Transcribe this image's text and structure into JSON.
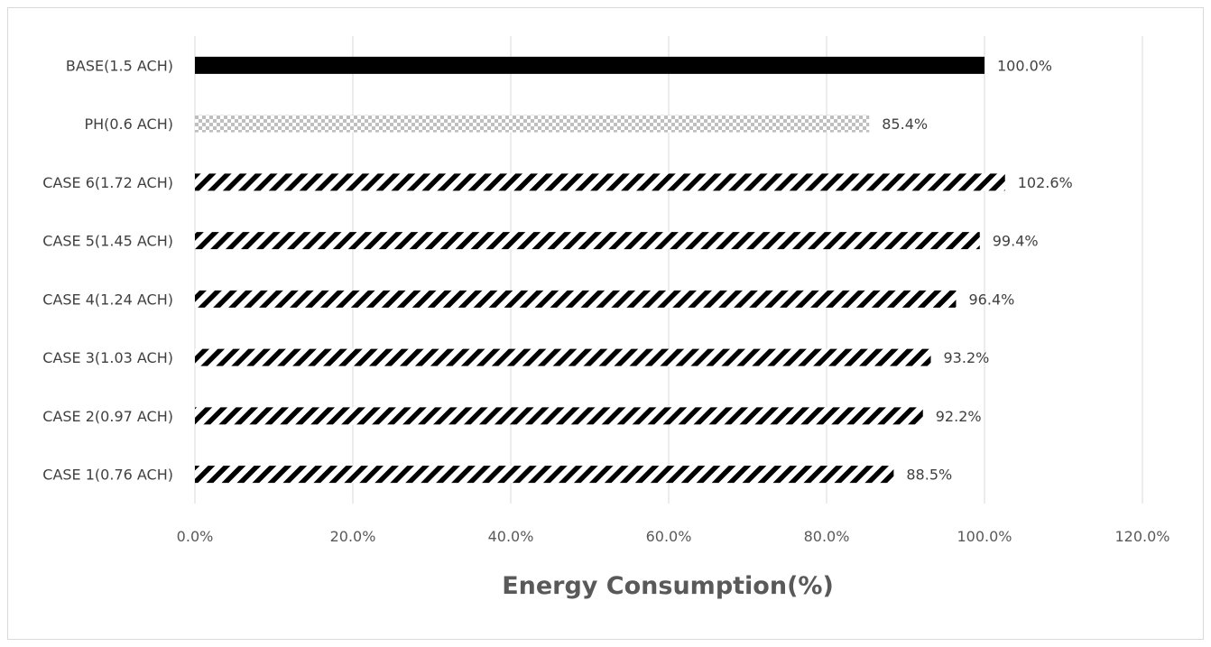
{
  "chart_data": {
    "type": "bar",
    "orientation": "horizontal",
    "title": "",
    "xlabel": "Energy Consumption(%)",
    "ylabel": "",
    "xlim": [
      0,
      120
    ],
    "x_ticks": [
      "0.0%",
      "20.0%",
      "40.0%",
      "60.0%",
      "80.0%",
      "100.0%",
      "120.0%"
    ],
    "x_tick_values": [
      0,
      20,
      40,
      60,
      80,
      100,
      120
    ],
    "grid": "vertical",
    "legend": "none",
    "categories": [
      "BASE(1.5 ACH)",
      "PH(0.6 ACH)",
      "CASE 6(1.72 ACH)",
      "CASE 5(1.45 ACH)",
      "CASE 4(1.24 ACH)",
      "CASE 3(1.03 ACH)",
      "CASE 2(0.97 ACH)",
      "CASE 1(0.76 ACH)"
    ],
    "values": [
      100.0,
      85.4,
      102.6,
      99.4,
      96.4,
      93.2,
      92.2,
      88.5
    ],
    "data_labels": [
      "100.0%",
      "85.4%",
      "102.6%",
      "99.4%",
      "96.4%",
      "93.2%",
      "92.2%",
      "88.5%"
    ],
    "bar_fills": [
      "solid",
      "checker",
      "hatch",
      "hatch",
      "hatch",
      "hatch",
      "hatch",
      "hatch"
    ],
    "colors": {
      "bar": "#000000",
      "checker": "#bfbfbf",
      "grid": "#d9d9d9",
      "text": "#404040"
    }
  }
}
